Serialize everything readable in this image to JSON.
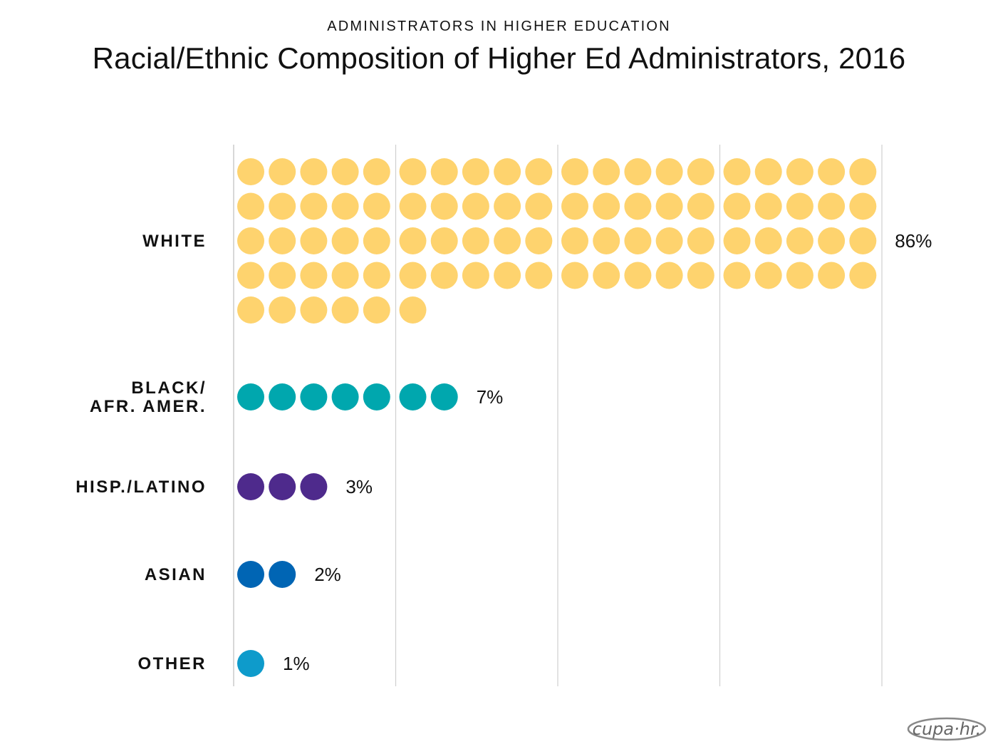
{
  "header": {
    "supertitle": "ADMINISTRATORS IN HIGHER EDUCATION",
    "title": "Racial/Ethnic Composition of Higher Ed Administrators, 2016"
  },
  "logo": {
    "text": "cupa·hr."
  },
  "chart_data": {
    "type": "dot-matrix",
    "title": "Racial/Ethnic Composition of Higher Ed Administrators, 2016",
    "unit_per_dot": 1,
    "gridline_every": 10,
    "categories": [
      {
        "key": "white",
        "label_lines": [
          "WHITE"
        ],
        "value": 86,
        "display": "86%",
        "color": "#FED36E"
      },
      {
        "key": "black",
        "label_lines": [
          "BLACK/",
          "AFR. AMER."
        ],
        "value": 7,
        "display": "7%",
        "color": "#00A7AE"
      },
      {
        "key": "hispanic",
        "label_lines": [
          "HISP./LATINO"
        ],
        "value": 3,
        "display": "3%",
        "color": "#4E2A8C"
      },
      {
        "key": "asian",
        "label_lines": [
          "ASIAN"
        ],
        "value": 2,
        "display": "2%",
        "color": "#0065B4"
      },
      {
        "key": "other",
        "label_lines": [
          "OTHER"
        ],
        "value": 1,
        "display": "1%",
        "color": "#0E9BCB"
      }
    ]
  }
}
